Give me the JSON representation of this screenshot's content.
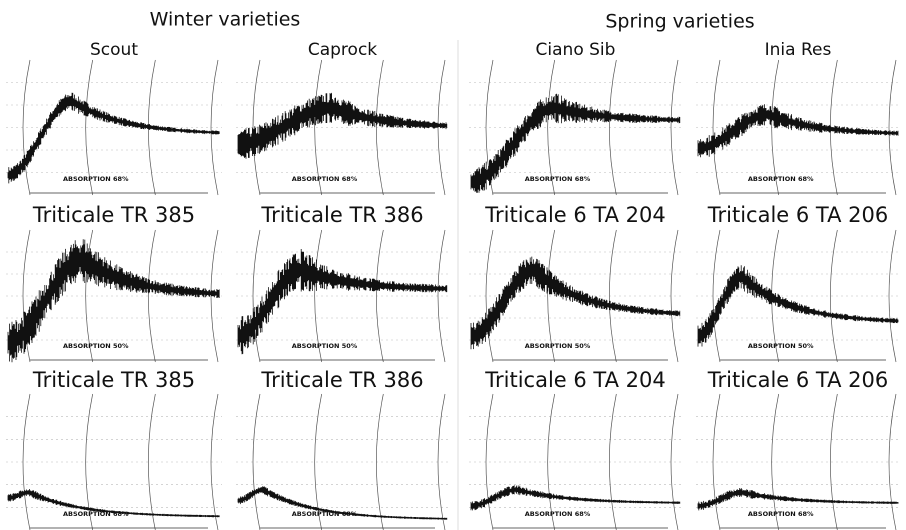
{
  "headings": [
    "Winter varieties",
    "Spring varieties"
  ],
  "panels": [
    {
      "title": "Scout",
      "absorption": "ABSORPTION 68%"
    },
    {
      "title": "Caprock",
      "absorption": "ABSORPTION 68%"
    },
    {
      "title": "Ciano Sib",
      "absorption": "ABSORPTION 68%"
    },
    {
      "title": "Inia Res",
      "absorption": "ABSORPTION 68%"
    },
    {
      "title": "Triticale TR 385",
      "absorption": "ABSORPTION 50%"
    },
    {
      "title": "Triticale TR 386",
      "absorption": "ABSORPTION 50%"
    },
    {
      "title": "Triticale 6 TA 204",
      "absorption": "ABSORPTION 50%"
    },
    {
      "title": "Triticale 6 TA 206",
      "absorption": "ABSORPTION 50%"
    },
    {
      "title": "Triticale TR 385",
      "absorption": "ABSORPTION 68%"
    },
    {
      "title": "Triticale TR 386",
      "absorption": "ABSORPTION 68%"
    },
    {
      "title": "Triticale 6 TA 204",
      "absorption": "ABSORPTION 68%"
    },
    {
      "title": "Triticale 6 TA 206",
      "absorption": "ABSORPTION 68%"
    }
  ]
}
